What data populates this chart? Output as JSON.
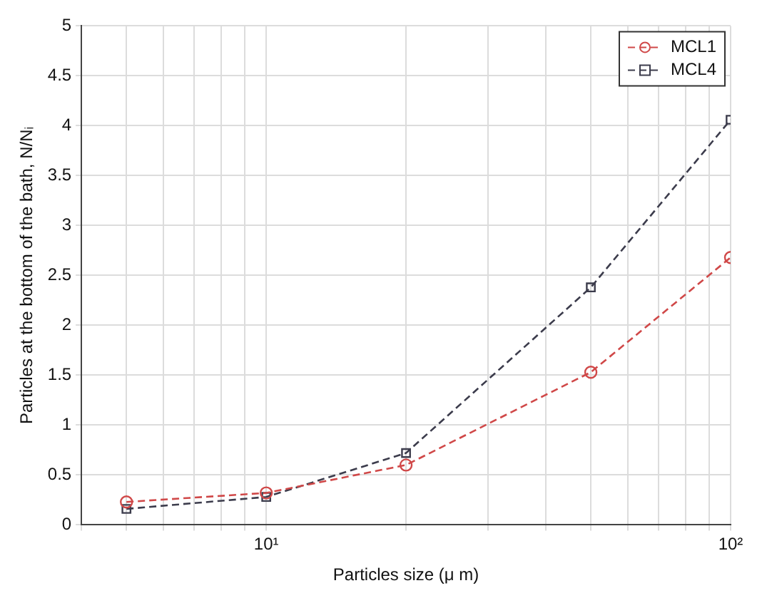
{
  "chart_data": {
    "type": "line",
    "xlabel": "Particles size (μ m)",
    "ylabel": "Particles at the bottom of the bath, N/Nᵢ",
    "x": [
      5,
      10,
      20,
      50,
      100
    ],
    "series": [
      {
        "name": "MCL1",
        "color": "#d04848",
        "values": [
          0.23,
          0.32,
          0.6,
          1.53,
          2.68
        ],
        "marker": "circle"
      },
      {
        "name": "MCL4",
        "color": "#3c3c4c",
        "values": [
          0.16,
          0.28,
          0.72,
          2.38,
          4.06
        ],
        "marker": "square"
      }
    ],
    "log": "x",
    "xlim": [
      4,
      100
    ],
    "xticks": [
      {
        "value": 4,
        "label": null
      },
      {
        "value": 5,
        "label": null
      },
      {
        "value": 6,
        "label": null
      },
      {
        "value": 7,
        "label": null
      },
      {
        "value": 8,
        "label": null
      },
      {
        "value": 9,
        "label": null
      },
      {
        "value": 10,
        "label": "10¹"
      },
      {
        "value": 20,
        "label": null
      },
      {
        "value": 30,
        "label": null
      },
      {
        "value": 40,
        "label": null
      },
      {
        "value": 50,
        "label": null
      },
      {
        "value": 60,
        "label": null
      },
      {
        "value": 70,
        "label": null
      },
      {
        "value": 80,
        "label": null
      },
      {
        "value": 90,
        "label": null
      },
      {
        "value": 100,
        "label": "10²"
      }
    ],
    "ylim": [
      0,
      5
    ],
    "yticks": [
      0,
      0.5,
      1,
      1.5,
      2,
      2.5,
      3,
      3.5,
      4,
      4.5,
      5
    ],
    "grid": true,
    "legend": "top right",
    "line_style": "dashed"
  }
}
